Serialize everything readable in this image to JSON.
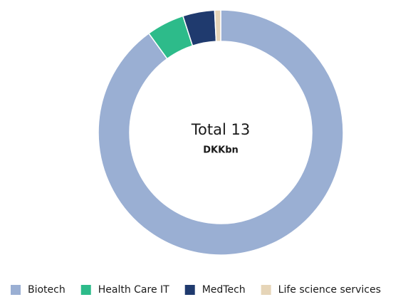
{
  "chart_data": {
    "type": "donut",
    "center_title": "Total 13",
    "center_subtitle": "DKKbn",
    "categories": [
      "Biotech",
      "Health Care IT",
      "MedTech",
      "Life science services"
    ],
    "values": [
      90,
      5,
      4.2,
      0.8
    ],
    "colors": [
      "#9aafd3",
      "#2dbb8a",
      "#1f3a6e",
      "#e6d5b8"
    ],
    "legend": "bottom"
  }
}
